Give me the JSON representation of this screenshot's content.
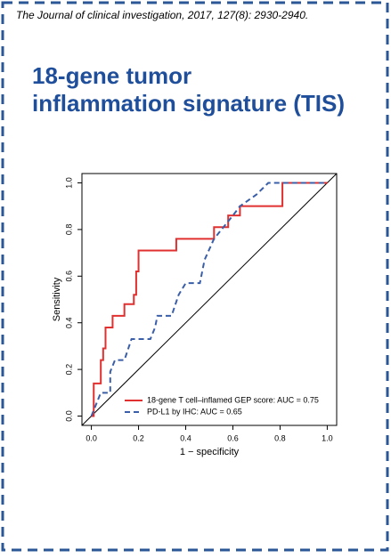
{
  "citation": "The Journal of clinical investigation, 2017, 127(8): 2930-2940.",
  "title_lines": [
    "18-gene tumor",
    "inflammation signature (TIS)"
  ],
  "chart_data": {
    "type": "line",
    "xlabel": "1 − specificity",
    "ylabel": "Sensitivity",
    "xlim": [
      -0.04,
      1.04
    ],
    "ylim": [
      -0.04,
      1.04
    ],
    "xticks": [
      {
        "value": 0,
        "label": "0.0"
      },
      0.2,
      0.4,
      0.6,
      0.8,
      {
        "value": 1,
        "label": "1.0"
      }
    ],
    "yticks": [
      {
        "value": 0,
        "label": "0.0"
      },
      0.2,
      0.4,
      0.6,
      0.8,
      {
        "value": 1,
        "label": "1.0"
      }
    ],
    "legend": "bottom right",
    "series": [
      {
        "name": "18-gene T cell–inflamed GEP score: AUC = 0.75",
        "color": "#e03030",
        "dash": false,
        "x": [
          0,
          0.01,
          0.01,
          0.04,
          0.04,
          0.05,
          0.05,
          0.06,
          0.06,
          0.09,
          0.09,
          0.14,
          0.14,
          0.18,
          0.18,
          0.19,
          0.19,
          0.2,
          0.2,
          0.36,
          0.36,
          0.52,
          0.52,
          0.58,
          0.58,
          0.63,
          0.63,
          0.81,
          0.81,
          1.0
        ],
        "values": [
          0,
          0,
          0.14,
          0.14,
          0.24,
          0.24,
          0.29,
          0.29,
          0.38,
          0.38,
          0.43,
          0.43,
          0.48,
          0.48,
          0.52,
          0.52,
          0.62,
          0.62,
          0.71,
          0.71,
          0.76,
          0.76,
          0.81,
          0.81,
          0.86,
          0.86,
          0.9,
          0.9,
          1.0,
          1.0
        ]
      },
      {
        "name": "PD-L1 by IHC: AUC = 0.65",
        "color": "#3a5fa8",
        "dash": true,
        "x": [
          0,
          0.02,
          0.04,
          0.08,
          0.08,
          0.1,
          0.14,
          0.17,
          0.25,
          0.27,
          0.28,
          0.34,
          0.37,
          0.4,
          0.46,
          0.48,
          0.52,
          0.56,
          0.6,
          0.63,
          0.7,
          0.75,
          1.0
        ],
        "values": [
          0,
          0.05,
          0.1,
          0.1,
          0.19,
          0.24,
          0.24,
          0.33,
          0.33,
          0.38,
          0.43,
          0.43,
          0.52,
          0.57,
          0.57,
          0.67,
          0.76,
          0.81,
          0.86,
          0.9,
          0.95,
          1.0,
          1.0
        ]
      }
    ]
  }
}
